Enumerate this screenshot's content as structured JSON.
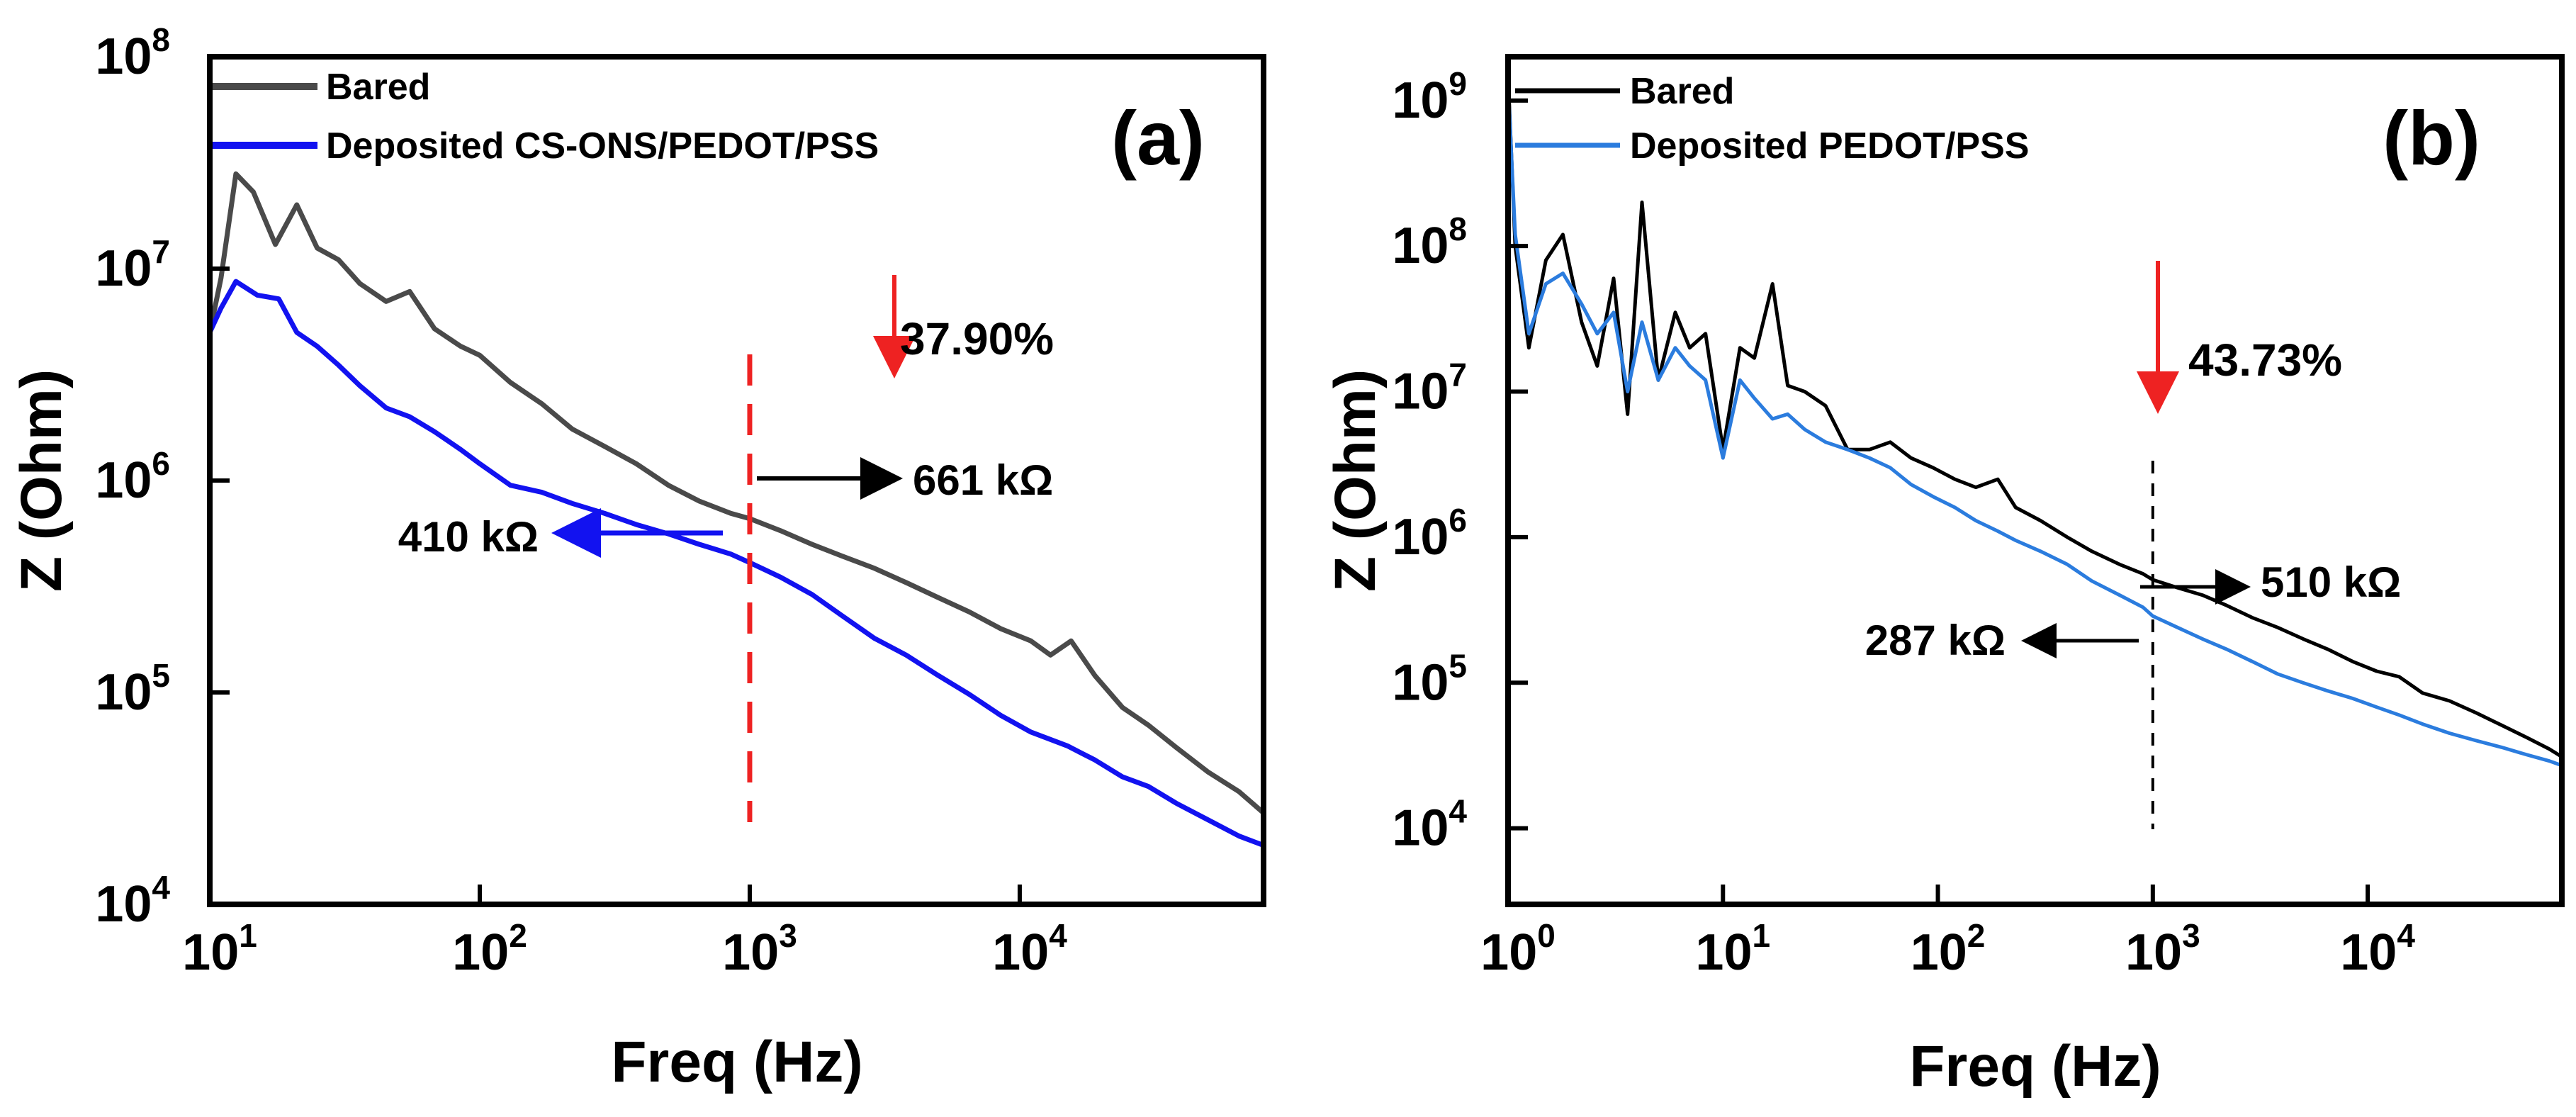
{
  "chart_data": [
    {
      "type": "line",
      "panel": "(a)",
      "xlabel": "Freq (Hz)",
      "ylabel": "Z (Ohm)",
      "xscale": "log",
      "yscale": "log",
      "xlim": [
        10,
        80000
      ],
      "ylim": [
        10000,
        100000000
      ],
      "x_ticks": [
        {
          "value": 10,
          "base": "10",
          "exp": "1"
        },
        {
          "value": 100,
          "base": "10",
          "exp": "2"
        },
        {
          "value": 1000,
          "base": "10",
          "exp": "3"
        },
        {
          "value": 10000,
          "base": "10",
          "exp": "4"
        }
      ],
      "y_ticks": [
        {
          "value": 10000,
          "base": "10",
          "exp": "4"
        },
        {
          "value": 100000,
          "base": "10",
          "exp": "5"
        },
        {
          "value": 1000000,
          "base": "10",
          "exp": "6"
        },
        {
          "value": 10000000,
          "base": "10",
          "exp": "7"
        },
        {
          "value": 100000000,
          "base": "10",
          "exp": "8"
        }
      ],
      "legend_position": "top-left",
      "series": [
        {
          "name": "Bared",
          "color": "#4a4a4a",
          "x": [
            10,
            11,
            12.5,
            14.5,
            17.5,
            21,
            25,
            30,
            36,
            45,
            55,
            68,
            85,
            100,
            130,
            170,
            220,
            290,
            380,
            500,
            650,
            850,
            1000,
            1300,
            1700,
            2200,
            2900,
            3800,
            5000,
            6500,
            8500,
            11000,
            13000,
            15500,
            19000,
            24000,
            30000,
            38000,
            50000,
            65000,
            80000
          ],
          "y": [
            5000000,
            9000000,
            28000000,
            23000000,
            13000000,
            20000000,
            12500000,
            11000000,
            8500000,
            7000000,
            7800000,
            5200000,
            4300000,
            3900000,
            2900000,
            2300000,
            1750000,
            1450000,
            1200000,
            950000,
            800000,
            700000,
            661000,
            580000,
            500000,
            440000,
            385000,
            330000,
            280000,
            240000,
            200000,
            175000,
            150000,
            175000,
            120000,
            85000,
            70000,
            55000,
            42000,
            34000,
            27000
          ]
        },
        {
          "name": "Deposited CS-ONS/PEDOT/PSS",
          "color": "#1212f0",
          "x": [
            10,
            11,
            12.5,
            15,
            18,
            21,
            25,
            30,
            36,
            45,
            55,
            68,
            85,
            100,
            130,
            170,
            220,
            290,
            380,
            500,
            650,
            850,
            1000,
            1300,
            1700,
            2200,
            2900,
            3800,
            5000,
            6500,
            8500,
            11000,
            15000,
            19000,
            24000,
            30000,
            38000,
            50000,
            65000,
            80000
          ],
          "y": [
            5000000,
            6500000,
            8700000,
            7500000,
            7200000,
            5000000,
            4300000,
            3500000,
            2800000,
            2200000,
            2000000,
            1700000,
            1400000,
            1200000,
            950000,
            880000,
            780000,
            700000,
            620000,
            560000,
            500000,
            450000,
            410000,
            350000,
            290000,
            230000,
            180000,
            150000,
            120000,
            98000,
            78000,
            65000,
            56000,
            48000,
            40000,
            36000,
            30000,
            25000,
            21000,
            19000
          ]
        }
      ],
      "annotations": {
        "marker_line_x": 1000,
        "bared_value": "661 kΩ",
        "deposited_value": "410 kΩ",
        "reduction": "37.90%"
      },
      "colors": {
        "marker_line": "#ee2222",
        "reduction_arrow": "#ee2222",
        "deposited_arrow": "#1212f0",
        "bared_arrow": "#000000"
      }
    },
    {
      "type": "line",
      "panel": "(b)",
      "xlabel": "Freq (Hz)",
      "ylabel": "Z (Ohm)",
      "xscale": "log",
      "yscale": "log",
      "xlim": [
        1,
        80000
      ],
      "ylim": [
        3000,
        2000000000
      ],
      "x_ticks": [
        {
          "value": 1,
          "base": "10",
          "exp": "0"
        },
        {
          "value": 10,
          "base": "10",
          "exp": "1"
        },
        {
          "value": 100,
          "base": "10",
          "exp": "2"
        },
        {
          "value": 1000,
          "base": "10",
          "exp": "3"
        },
        {
          "value": 10000,
          "base": "10",
          "exp": "4"
        }
      ],
      "y_ticks": [
        {
          "value": 10000,
          "base": "10",
          "exp": "4"
        },
        {
          "value": 100000,
          "base": "10",
          "exp": "5"
        },
        {
          "value": 1000000,
          "base": "10",
          "exp": "6"
        },
        {
          "value": 10000000,
          "base": "10",
          "exp": "7"
        },
        {
          "value": 100000000,
          "base": "10",
          "exp": "8"
        },
        {
          "value": 1000000000,
          "base": "10",
          "exp": "9"
        }
      ],
      "legend_position": "top-left",
      "series": [
        {
          "name": "Bared",
          "color": "#000000",
          "x": [
            1,
            1.08,
            1.25,
            1.5,
            1.8,
            2.2,
            2.6,
            3.1,
            3.6,
            4.2,
            5,
            6,
            7,
            8.3,
            10,
            12,
            14,
            17,
            20,
            24,
            30,
            38,
            48,
            60,
            75,
            95,
            120,
            150,
            190,
            230,
            300,
            400,
            520,
            700,
            900,
            1000,
            1300,
            1700,
            2200,
            2900,
            3800,
            5000,
            6500,
            8500,
            11000,
            14000,
            18000,
            24000,
            32000,
            42000,
            55000,
            70000,
            80000
          ],
          "y": [
            1500000000,
            100000000,
            20000000,
            80000000,
            120000000,
            30000000,
            15000000,
            60000000,
            7000000,
            200000000,
            12000000,
            35000000,
            20000000,
            25000000,
            4000000,
            20000000,
            17000000,
            55000000,
            11000000,
            10000000,
            8000000,
            4000000,
            4000000,
            4500000,
            3500000,
            3000000,
            2500000,
            2200000,
            2500000,
            1600000,
            1300000,
            1000000,
            800000,
            650000,
            560000,
            510000,
            450000,
            400000,
            340000,
            280000,
            240000,
            200000,
            170000,
            140000,
            120000,
            110000,
            85000,
            75000,
            62000,
            51000,
            42000,
            35000,
            31000
          ]
        },
        {
          "name": "Deposited PEDOT/PSS",
          "color": "#2b7cde",
          "x": [
            1,
            1.08,
            1.25,
            1.5,
            1.8,
            2.2,
            2.6,
            3.1,
            3.6,
            4.2,
            5,
            6,
            7,
            8.3,
            10,
            12,
            14,
            17,
            20,
            24,
            30,
            38,
            48,
            60,
            75,
            95,
            120,
            150,
            190,
            230,
            300,
            400,
            520,
            700,
            900,
            1000,
            1300,
            1700,
            2200,
            2900,
            3800,
            5000,
            6500,
            8500,
            11000,
            14000,
            18000,
            24000,
            32000,
            42000,
            55000,
            70000,
            80000
          ],
          "y": [
            1300000000,
            120000000,
            25000000,
            55000000,
            65000000,
            40000000,
            25000000,
            35000000,
            10000000,
            30000000,
            12000000,
            20000000,
            15000000,
            12000000,
            3500000,
            12000000,
            9000000,
            6500000,
            7000000,
            5500000,
            4500000,
            4000000,
            3500000,
            3000000,
            2300000,
            1900000,
            1600000,
            1300000,
            1100000,
            950000,
            800000,
            650000,
            500000,
            400000,
            330000,
            287000,
            240000,
            200000,
            170000,
            140000,
            115000,
            100000,
            88000,
            78000,
            68000,
            60000,
            52000,
            45000,
            40000,
            36000,
            32000,
            29000,
            27000
          ]
        }
      ],
      "annotations": {
        "marker_line_x": 1000,
        "bared_value": "510 kΩ",
        "deposited_value": "287 kΩ",
        "reduction": "43.73%"
      },
      "colors": {
        "marker_line": "#000000",
        "reduction_arrow": "#ee2222",
        "deposited_arrow": "#000000",
        "bared_arrow": "#000000"
      }
    }
  ]
}
